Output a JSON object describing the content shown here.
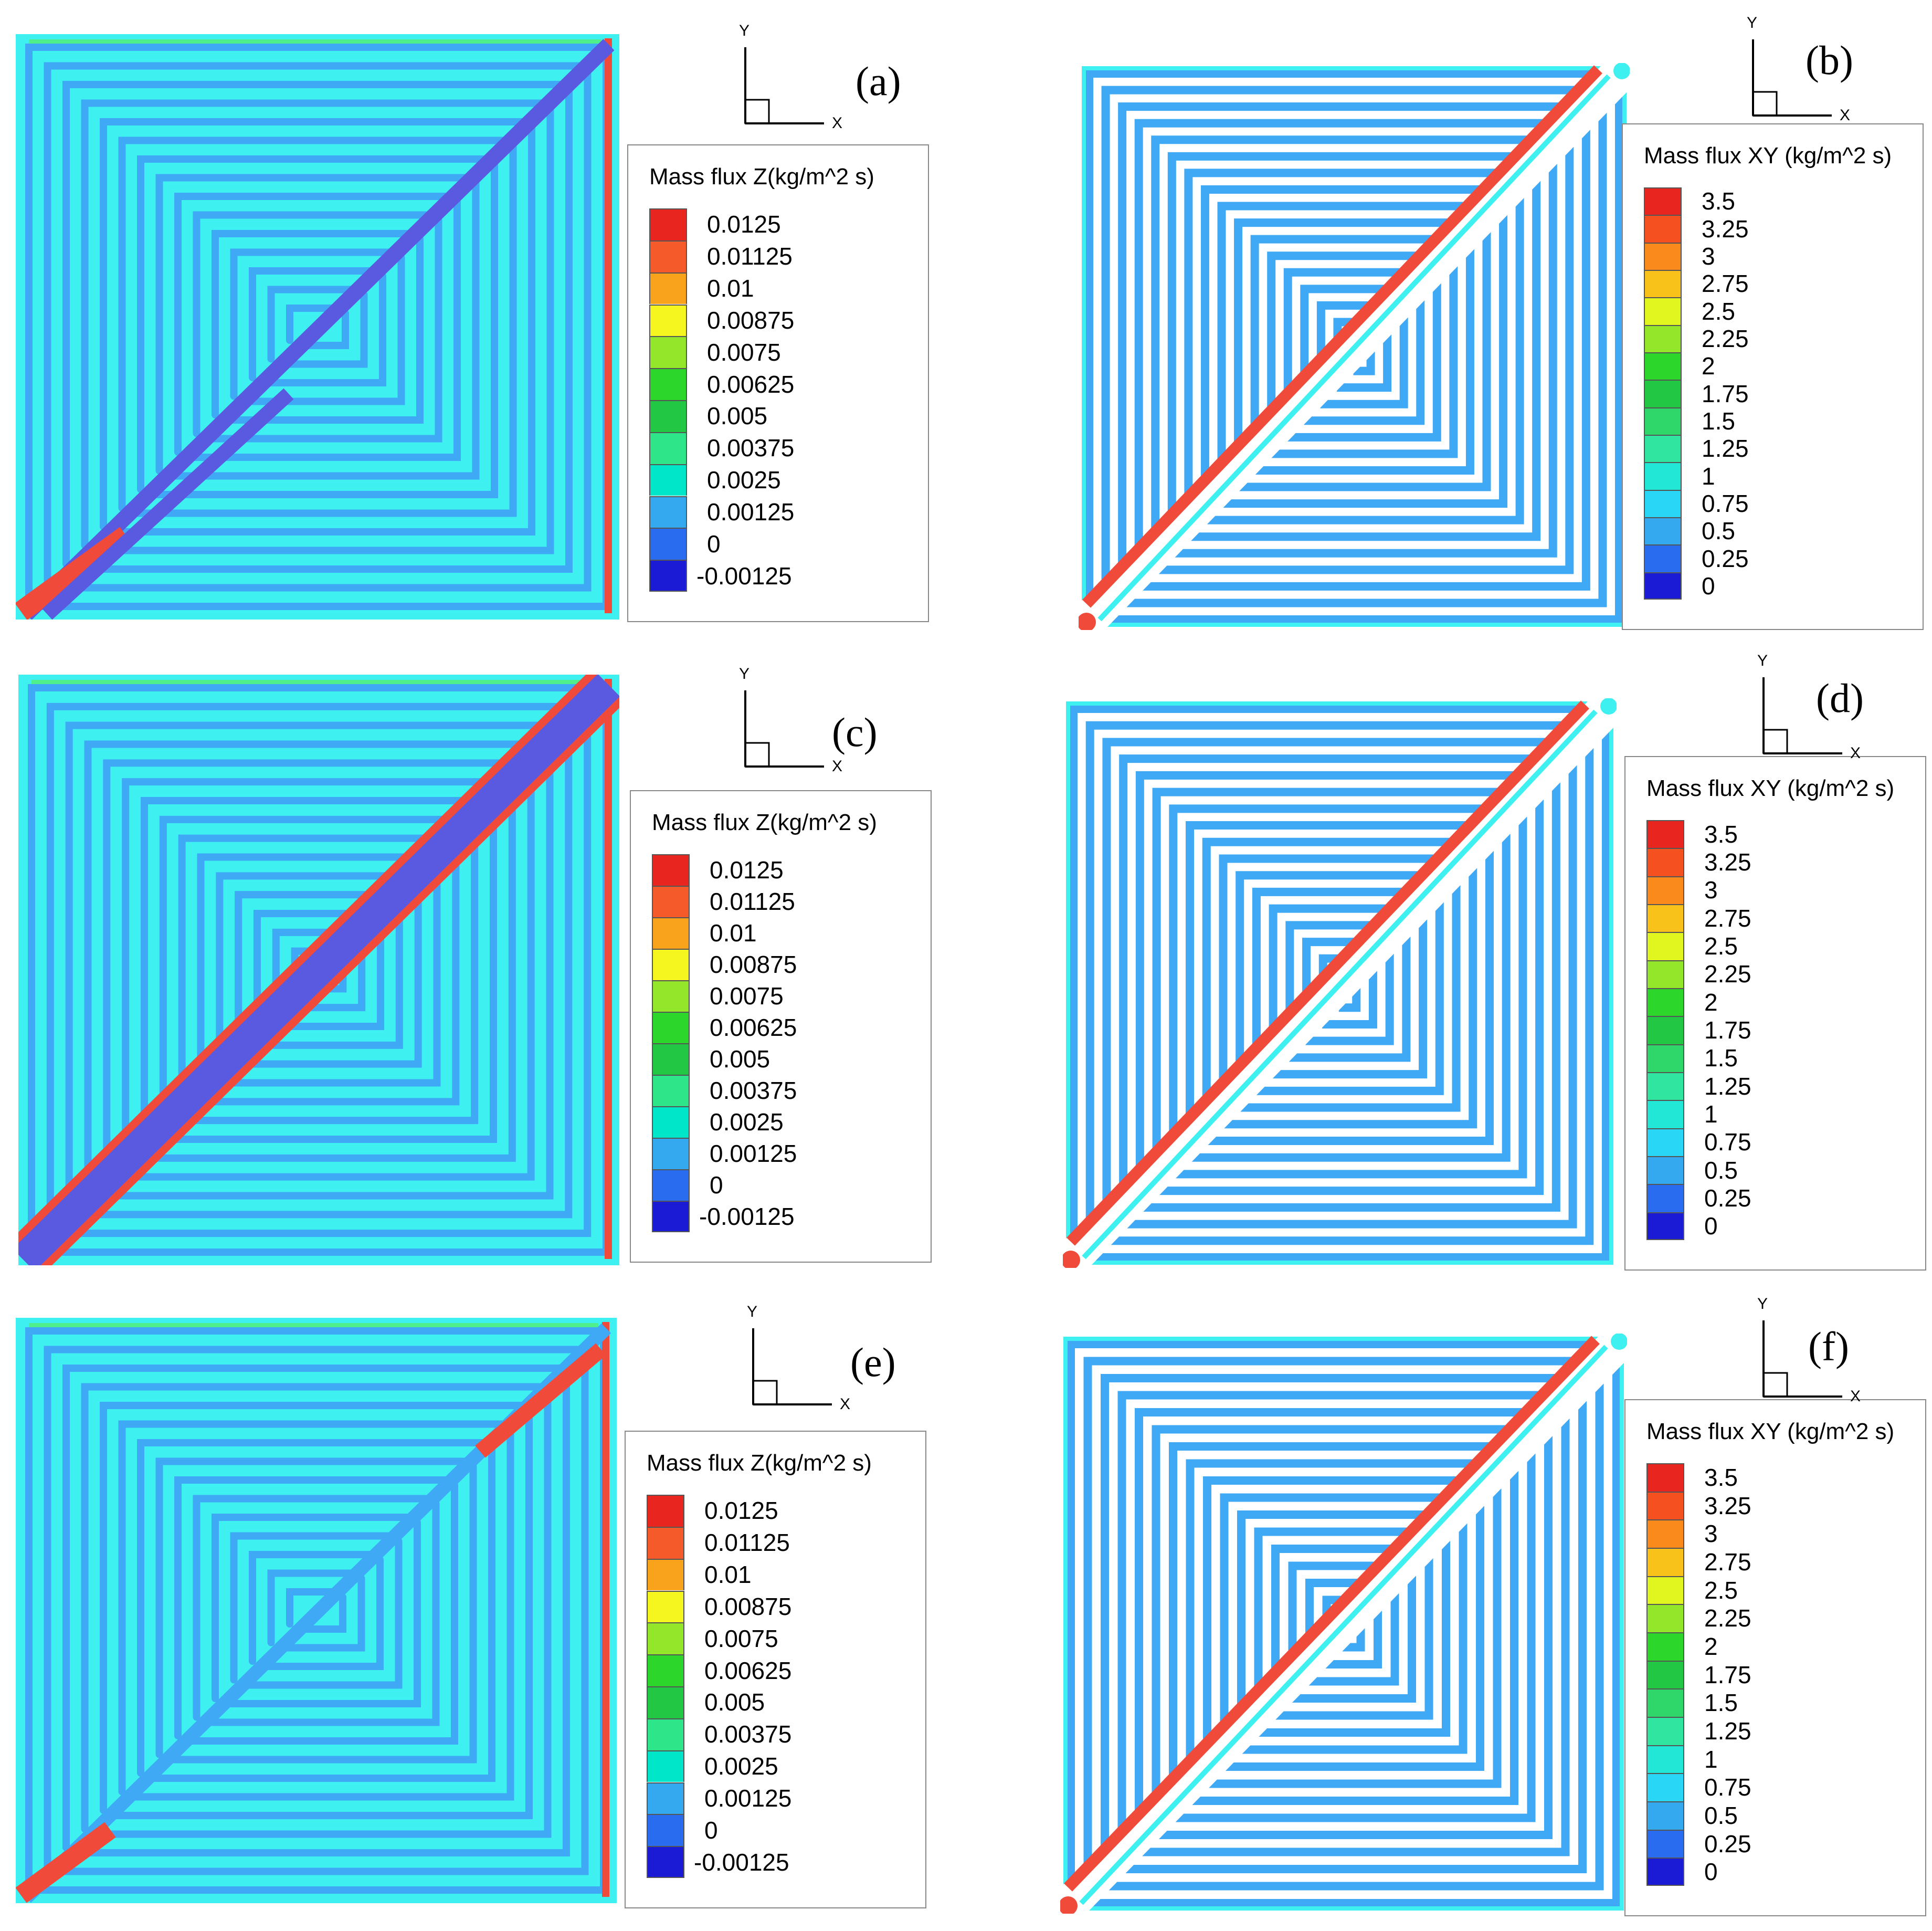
{
  "figure": {
    "panels": [
      {
        "id": "a",
        "label": "(a)",
        "kind": "Z",
        "legend_title": "Mass flux Z(kg/m^2 s)",
        "levels": [
          "0.0125",
          "0.01125",
          "0.01",
          "0.00875",
          "0.0075",
          "0.00625",
          "0.005",
          "0.00375",
          "0.0025",
          "0.00125",
          "0",
          "-0.00125"
        ],
        "axis_x": "X",
        "axis_y": "Y"
      },
      {
        "id": "b",
        "label": "(b)",
        "kind": "XY",
        "legend_title": "Mass flux XY (kg/m^2 s)",
        "levels": [
          "3.5",
          "3.25",
          "3",
          "2.75",
          "2.5",
          "2.25",
          "2",
          "1.75",
          "1.5",
          "1.25",
          "1",
          "0.75",
          "0.5",
          "0.25",
          "0"
        ],
        "axis_x": "X",
        "axis_y": "Y"
      },
      {
        "id": "c",
        "label": "(c)",
        "kind": "Z",
        "legend_title": "Mass flux Z(kg/m^2 s)",
        "levels": [
          "0.0125",
          "0.01125",
          "0.01",
          "0.00875",
          "0.0075",
          "0.00625",
          "0.005",
          "0.00375",
          "0.0025",
          "0.00125",
          "0",
          "-0.00125"
        ],
        "axis_x": "X",
        "axis_y": "Y"
      },
      {
        "id": "d",
        "label": "(d)",
        "kind": "XY",
        "legend_title": "Mass flux XY (kg/m^2 s)",
        "levels": [
          "3.5",
          "3.25",
          "3",
          "2.75",
          "2.5",
          "2.25",
          "2",
          "1.75",
          "1.5",
          "1.25",
          "1",
          "0.75",
          "0.5",
          "0.25",
          "0"
        ],
        "axis_x": "X",
        "axis_y": "Y"
      },
      {
        "id": "e",
        "label": "(e)",
        "kind": "Z",
        "legend_title": "Mass flux Z(kg/m^2 s)",
        "levels": [
          "0.0125",
          "0.01125",
          "0.01",
          "0.00875",
          "0.0075",
          "0.00625",
          "0.005",
          "0.00375",
          "0.0025",
          "0.00125",
          "0",
          "-0.00125"
        ],
        "axis_x": "X",
        "axis_y": "Y"
      },
      {
        "id": "f",
        "label": "(f)",
        "kind": "XY",
        "legend_title": "Mass flux XY (kg/m^2 s)",
        "levels": [
          "3.5",
          "3.25",
          "3",
          "2.75",
          "2.5",
          "2.25",
          "2",
          "1.75",
          "1.5",
          "1.25",
          "1",
          "0.75",
          "0.5",
          "0.25",
          "0"
        ],
        "axis_x": "X",
        "axis_y": "Y"
      }
    ]
  },
  "colors": {
    "z_scale": [
      "#e8251f",
      "#f55a2a",
      "#f9a21b",
      "#f5f51f",
      "#94e62a",
      "#2dd62a",
      "#22c844",
      "#2fe58a",
      "#00e6c8",
      "#34a9f0",
      "#2a6cf0",
      "#1b1bd6"
    ],
    "xy_scale": [
      "#e8251f",
      "#f5501f",
      "#f98a1b",
      "#f9c21b",
      "#e1f51f",
      "#94e62a",
      "#2dd62a",
      "#22c844",
      "#2fd66a",
      "#2fe5a0",
      "#22e6d6",
      "#2ad6f5",
      "#34a9f0",
      "#2a6cf0",
      "#1b1bd6"
    ],
    "z_background": "#3ff0f0",
    "z_band": "#3fa9f5",
    "z_diag_core": "#5a5ae0",
    "z_diag_edge": "#f04a3a",
    "xy_channel": "#3fa9f5",
    "xy_rib": "#ffffff",
    "xy_highlight": "#f04a3a",
    "xy_edge": "#3ff0f0"
  },
  "chart_data": [
    {
      "type": "heatmap",
      "title": "(a)",
      "colorbar_label": "Mass flux Z(kg/m^2 s)",
      "colorbar_range": [
        -0.00125,
        0.0125
      ],
      "colorbar_step": 0.00125,
      "axes": [
        "X",
        "Y"
      ]
    },
    {
      "type": "heatmap",
      "title": "(b)",
      "colorbar_label": "Mass flux XY (kg/m^2 s)",
      "colorbar_range": [
        0,
        3.5
      ],
      "colorbar_step": 0.25,
      "axes": [
        "X",
        "Y"
      ]
    },
    {
      "type": "heatmap",
      "title": "(c)",
      "colorbar_label": "Mass flux Z(kg/m^2 s)",
      "colorbar_range": [
        -0.00125,
        0.0125
      ],
      "colorbar_step": 0.00125,
      "axes": [
        "X",
        "Y"
      ]
    },
    {
      "type": "heatmap",
      "title": "(d)",
      "colorbar_label": "Mass flux XY (kg/m^2 s)",
      "colorbar_range": [
        0,
        3.5
      ],
      "colorbar_step": 0.25,
      "axes": [
        "X",
        "Y"
      ]
    },
    {
      "type": "heatmap",
      "title": "(e)",
      "colorbar_label": "Mass flux Z(kg/m^2 s)",
      "colorbar_range": [
        -0.00125,
        0.0125
      ],
      "colorbar_step": 0.00125,
      "axes": [
        "X",
        "Y"
      ]
    },
    {
      "type": "heatmap",
      "title": "(f)",
      "colorbar_label": "Mass flux XY (kg/m^2 s)",
      "colorbar_range": [
        0,
        3.5
      ],
      "colorbar_step": 0.25,
      "axes": [
        "X",
        "Y"
      ]
    }
  ]
}
